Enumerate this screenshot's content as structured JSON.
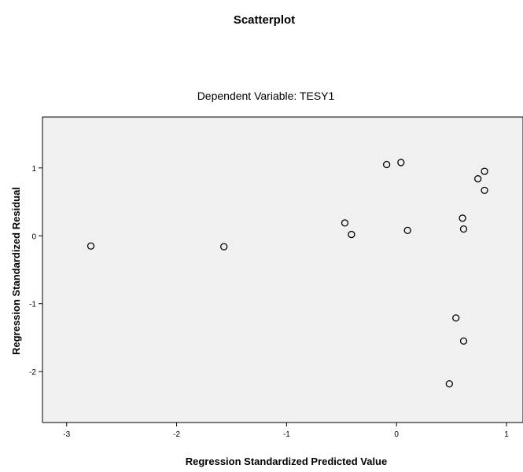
{
  "chart_data": {
    "type": "scatter",
    "title": "Scatterplot",
    "subtitle": "Dependent Variable: TESY1",
    "xlabel": "Regression Standardized Predicted Value",
    "ylabel": "Regression Standardized Residual",
    "xlim": [
      -3.22,
      1.15
    ],
    "ylim": [
      -2.75,
      1.75
    ],
    "xticks": [
      -3,
      -2,
      -1,
      0,
      1
    ],
    "yticks": [
      1,
      0,
      -1,
      -2
    ],
    "grid": false,
    "colors": {
      "plot_bg": "#f0f0f0",
      "marker": "#000000"
    },
    "points": [
      {
        "x": -2.78,
        "y": -0.15
      },
      {
        "x": -1.57,
        "y": -0.16
      },
      {
        "x": -0.47,
        "y": 0.19
      },
      {
        "x": -0.41,
        "y": 0.02
      },
      {
        "x": -0.09,
        "y": 1.05
      },
      {
        "x": 0.04,
        "y": 1.08
      },
      {
        "x": 0.1,
        "y": 0.08
      },
      {
        "x": 0.6,
        "y": 0.26
      },
      {
        "x": 0.61,
        "y": 0.1
      },
      {
        "x": 0.74,
        "y": 0.84
      },
      {
        "x": 0.8,
        "y": 0.95
      },
      {
        "x": 0.8,
        "y": 0.67
      },
      {
        "x": 0.54,
        "y": -1.21
      },
      {
        "x": 0.61,
        "y": -1.55
      },
      {
        "x": 0.48,
        "y": -2.18
      }
    ]
  }
}
